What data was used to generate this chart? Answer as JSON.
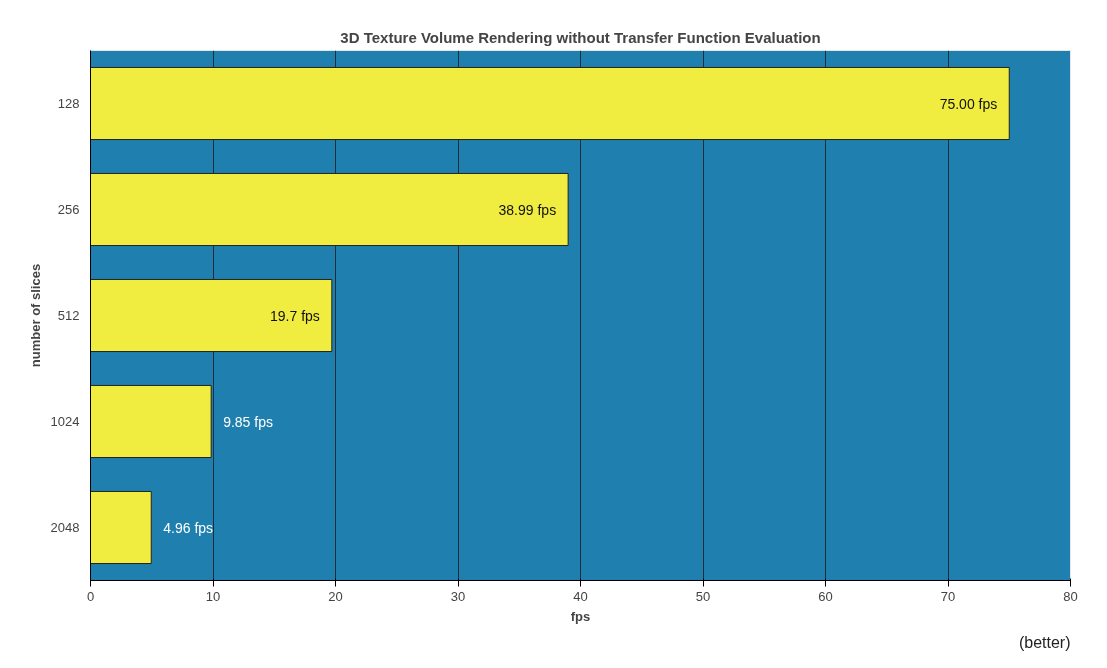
{
  "chart_data": {
    "type": "bar",
    "orientation": "horizontal",
    "title": "3D Texture Volume Rendering without Transfer Function Evaluation",
    "xlabel": "fps",
    "ylabel": "number of slices",
    "categories": [
      "128",
      "256",
      "512",
      "1024",
      "2048"
    ],
    "values": [
      75.0,
      38.99,
      19.7,
      9.85,
      4.96
    ],
    "value_labels": [
      "75.00 fps",
      "38.99 fps",
      "19.7 fps",
      "9.85 fps",
      "4.96 fps"
    ],
    "color": "#f0ec40",
    "xlim": [
      0,
      80
    ],
    "xticks": [
      0,
      10,
      20,
      30,
      40,
      50,
      60,
      70,
      80
    ],
    "grid": "x",
    "annotations": [
      "(better)"
    ]
  }
}
